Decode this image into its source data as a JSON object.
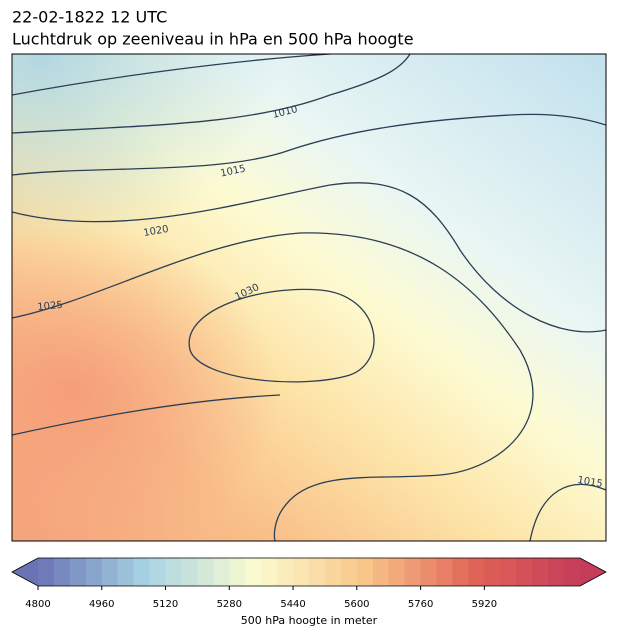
{
  "title": [
    "22-02-1822 12 UTC",
    "Luchtdruk op zeeniveau in hPa en 500 hPa hoogte"
  ],
  "contour_labels": [
    1010,
    1015,
    1020,
    1025,
    1030,
    1015
  ],
  "colorbar": {
    "label": "500 hPa hoogte in meter",
    "lim": [
      4800,
      6160
    ],
    "step": 40,
    "ticks": [
      4800,
      4960,
      5120,
      5280,
      5440,
      5600,
      5760,
      5920
    ],
    "colors": [
      "#6a74b4",
      "#a8d3e4",
      "#fbfbd0",
      "#f9c78b",
      "#e16558",
      "#c53c5a"
    ]
  }
}
